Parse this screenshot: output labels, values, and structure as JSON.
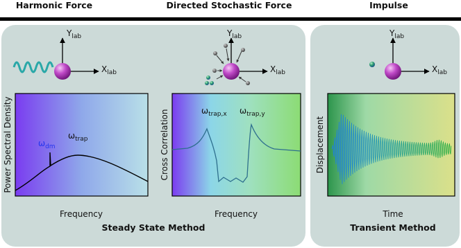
{
  "headers": [
    "Harmonic Force",
    "Directed Stochastic Force",
    "Impulse"
  ],
  "axes": [
    {
      "y": {
        "base": "Y",
        "sub": "lab"
      },
      "x": {
        "base": "X",
        "sub": "lab"
      }
    },
    {
      "y": {
        "base": "Y",
        "sub": "lab"
      },
      "x": {
        "base": "X",
        "sub": "lab"
      }
    },
    {
      "y": {
        "base": "Y",
        "sub": "lab"
      },
      "x": {
        "base": "X",
        "sub": "lab"
      }
    }
  ],
  "plots": [
    {
      "y_label": "Power Spectral Density",
      "x_label": "Frequency",
      "peaks": [
        {
          "base": "ω",
          "sub": "dm"
        },
        {
          "base": "ω",
          "sub": "trap"
        }
      ]
    },
    {
      "y_label": "Cross Correlation",
      "x_label": "Frequency",
      "peaks": [
        {
          "base": "ω",
          "sub": "trap,x"
        },
        {
          "base": "ω",
          "sub": "trap,y"
        }
      ]
    },
    {
      "y_label": "Displacement",
      "x_label": "Time"
    }
  ],
  "methods": [
    "Steady State Method",
    "Transient Method"
  ]
}
